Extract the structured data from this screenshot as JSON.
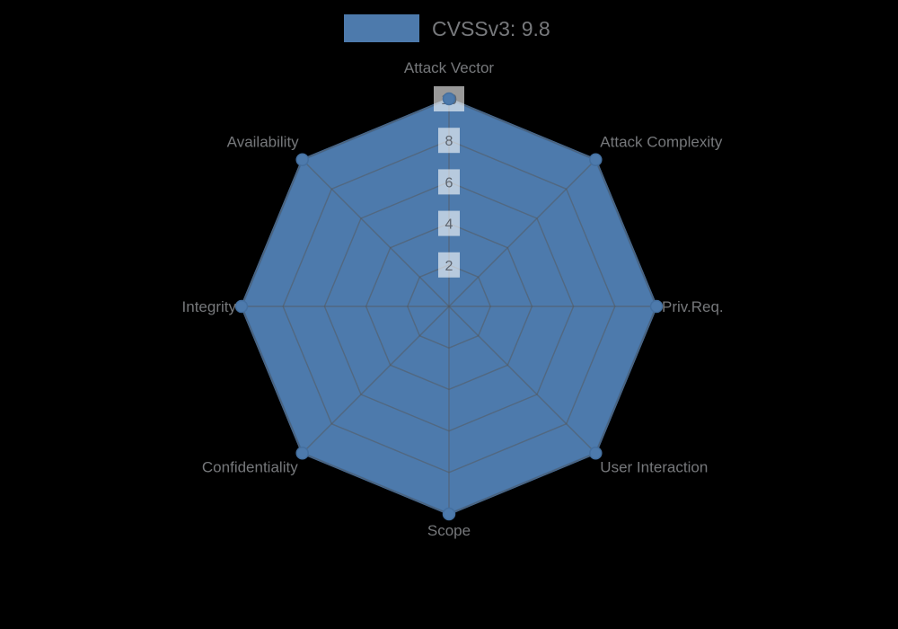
{
  "canvas": {
    "background": "#000000"
  },
  "legend": {
    "label": "CVSSv3: 9.8",
    "swatch_color": "#4d7aac"
  },
  "chart_data": {
    "type": "radar",
    "title": "",
    "categories": [
      "Attack Vector",
      "Attack Complexity",
      "Priv.Req.",
      "User Interaction",
      "Scope",
      "Confidentiality",
      "Integrity",
      "Availability"
    ],
    "series": [
      {
        "name": "CVSSv3: 9.8",
        "values": [
          10,
          10,
          10,
          10,
          10,
          10,
          10,
          10
        ]
      }
    ],
    "scale": {
      "min": 0,
      "max": 10,
      "ticks": [
        2,
        4,
        6,
        8,
        10
      ]
    },
    "grid": true,
    "legend_position": "top",
    "colors": {
      "fill": "#4d7aac",
      "border": "#446f9f",
      "grid_line": "rgba(85,85,85,0.5)",
      "tick_backdrop": "rgba(255,255,255,0.6)",
      "tick_text": "#5d646e",
      "axis_label_text": "#76787b",
      "legend_text": "#77797c"
    }
  }
}
